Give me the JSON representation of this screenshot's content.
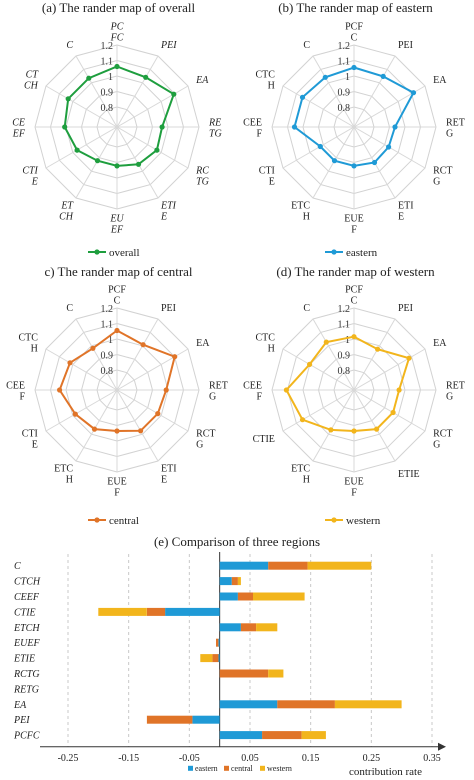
{
  "chart_data": [
    {
      "type": "radar",
      "title": "(a) The rander map of overall",
      "italic_labels": true,
      "axes": [
        [
          "PC",
          "FC"
        ],
        [
          "PEI"
        ],
        [
          "EA"
        ],
        [
          "RE",
          "TG"
        ],
        [
          "RC",
          "TG"
        ],
        [
          "ETI",
          "E"
        ],
        [
          "EU",
          "EF"
        ],
        [
          "ET",
          "CH"
        ],
        [
          "CTI",
          "E"
        ],
        [
          "CE",
          "EF"
        ],
        [
          "CT",
          "CH"
        ],
        [
          "C"
        ]
      ],
      "ticks": [
        "0.8",
        "0.9",
        "1",
        "1.1",
        "1.2"
      ],
      "rlim": [
        0.8,
        1.2
      ],
      "series": [
        {
          "name": "overall",
          "color": "#1e9e3e",
          "values": [
            1.095,
            1.08,
            1.12,
            1.02,
            1.025,
            1.01,
            0.99,
            0.99,
            1.025,
            1.055,
            1.075,
            1.075
          ]
        }
      ],
      "legend": "bottom"
    },
    {
      "type": "radar",
      "title": "(b) The rander map of eastern",
      "italic_labels": false,
      "axes": [
        [
          "PCF",
          "C"
        ],
        [
          "PEI"
        ],
        [
          "EA"
        ],
        [
          "RET",
          "G"
        ],
        [
          "RCT",
          "G"
        ],
        [
          "ETI",
          "E"
        ],
        [
          "EUE",
          "F"
        ],
        [
          "ETC",
          "H"
        ],
        [
          "CTI",
          "E"
        ],
        [
          "CEE",
          "F"
        ],
        [
          "CTC",
          "H"
        ],
        [
          "C"
        ]
      ],
      "ticks": [
        "0.8",
        "0.9",
        "1",
        "1.1",
        "1.2"
      ],
      "rlim": [
        0.8,
        1.2
      ],
      "series": [
        {
          "name": "eastern",
          "color": "#1f9ad6",
          "values": [
            1.09,
            1.085,
            1.135,
            1.0,
            0.995,
            1.0,
            0.99,
            0.99,
            0.99,
            1.09,
            1.09,
            1.08
          ]
        }
      ],
      "legend": "bottom"
    },
    {
      "type": "radar",
      "title": "c) The rander map of central",
      "italic_labels": false,
      "axes": [
        [
          "PCF",
          "C"
        ],
        [
          "PEI"
        ],
        [
          "EA"
        ],
        [
          "RET",
          "G"
        ],
        [
          "RCT",
          "G"
        ],
        [
          "ETI",
          "E"
        ],
        [
          "EUE",
          "F"
        ],
        [
          "ETC",
          "H"
        ],
        [
          "CTI",
          "E"
        ],
        [
          "CEE",
          "F"
        ],
        [
          "CTC",
          "H"
        ],
        [
          "C"
        ]
      ],
      "ticks": [
        "0.8",
        "0.9",
        "1",
        "1.1",
        "1.2"
      ],
      "rlim": [
        0.8,
        1.2
      ],
      "series": [
        {
          "name": "central",
          "color": "#e07428",
          "values": [
            1.09,
            1.055,
            1.125,
            1.04,
            1.03,
            1.03,
            1.0,
            1.02,
            1.035,
            1.08,
            1.065,
            1.035
          ]
        }
      ],
      "legend": "bottom"
    },
    {
      "type": "radar",
      "title": "(d) The rander map of western",
      "italic_labels": false,
      "axes": [
        [
          "PCF",
          "C"
        ],
        [
          "PEI"
        ],
        [
          "EA"
        ],
        [
          "RET",
          "G"
        ],
        [
          "RCT",
          "G"
        ],
        [
          "ETIE"
        ],
        [
          "EUE",
          "F"
        ],
        [
          "ETC",
          "H"
        ],
        [
          "CTIE"
        ],
        [
          "CEE",
          "F"
        ],
        [
          "CTC",
          "H"
        ],
        [
          "C"
        ]
      ],
      "ticks": [
        "0.8",
        "0.9",
        "1",
        "1.1",
        "1.2"
      ],
      "rlim": [
        0.8,
        1.2
      ],
      "series": [
        {
          "name": "western",
          "color": "#f2b51c",
          "values": [
            1.06,
            1.03,
            1.11,
            1.02,
            1.02,
            1.02,
            1.0,
            1.025,
            1.09,
            1.13,
            1.05,
            1.07
          ]
        }
      ],
      "legend": "bottom"
    },
    {
      "type": "bar",
      "orientation": "horizontal",
      "stacked": true,
      "title": "(e) Comparison of three regions",
      "xlabel": "contribution rate",
      "xlim": [
        -0.25,
        0.35
      ],
      "xticks": [
        "-0.25",
        "-0.15",
        "-0.05",
        "0.05",
        "0.15",
        "0.25",
        "0.35"
      ],
      "xtick_values": [
        -0.25,
        -0.15,
        -0.05,
        0.05,
        0.15,
        0.25,
        0.35
      ],
      "grid": true,
      "legend": "bottom",
      "categories": [
        "C",
        "CTCH",
        "CEEF",
        "CTIE",
        "ETCH",
        "EUEF",
        "ETIE",
        "RCTG",
        "RETG",
        "EA",
        "PEI",
        "PCFC"
      ],
      "series": [
        {
          "name": "eastern",
          "color": "#1f9ad6",
          "values": [
            0.08,
            0.02,
            0.03,
            -0.09,
            0.035,
            -0.002,
            -0.002,
            0.0,
            0.0,
            0.095,
            -0.045,
            0.07
          ]
        },
        {
          "name": "central",
          "color": "#e07428",
          "values": [
            0.065,
            0.01,
            0.025,
            -0.03,
            0.025,
            -0.004,
            -0.01,
            0.08,
            0.0,
            0.095,
            -0.075,
            0.065
          ]
        },
        {
          "name": "western",
          "color": "#f2b51c",
          "values": [
            0.105,
            0.005,
            0.085,
            -0.08,
            0.035,
            0.0,
            -0.02,
            0.025,
            0.0,
            0.11,
            0.0,
            0.04
          ]
        }
      ]
    }
  ]
}
